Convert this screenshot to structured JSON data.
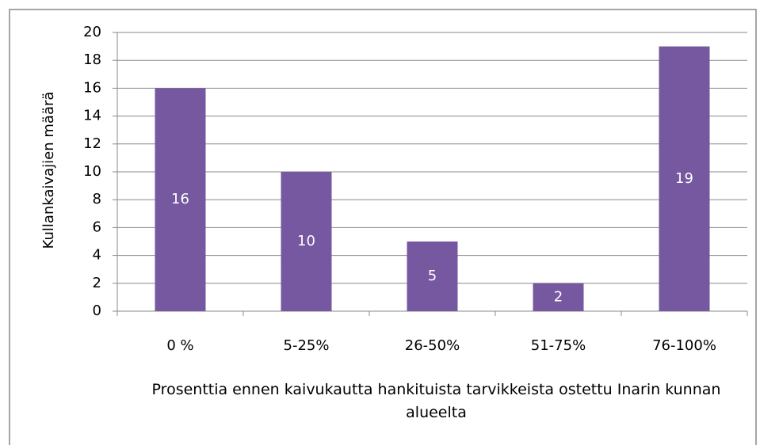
{
  "chart_data": {
    "type": "bar",
    "y_label": "Kullankaivajien määrä",
    "x_label": "Prosenttia ennen kaivukautta hankituista tarvikkeista ostettu Inarin kunnan alueelta",
    "categories": [
      "0 %",
      "5-25%",
      "26-50%",
      "51-75%",
      "76-100%"
    ],
    "values": [
      16,
      10,
      5,
      2,
      19
    ],
    "color": "#7558a0",
    "ylim": [
      0,
      20
    ],
    "yticks": [
      0,
      2,
      4,
      6,
      8,
      10,
      12,
      14,
      16,
      18,
      20
    ],
    "grid": true
  }
}
